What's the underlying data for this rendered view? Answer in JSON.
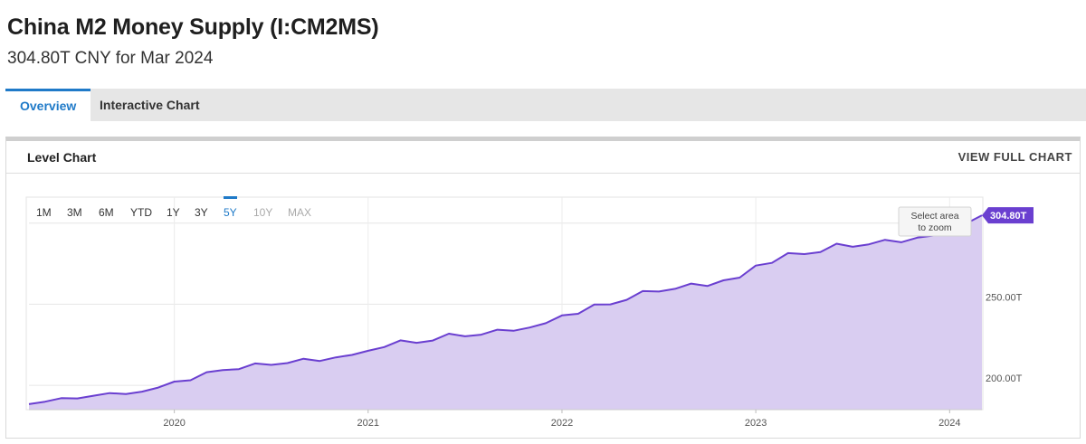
{
  "header": {
    "title": "China M2 Money Supply (I:CM2MS)",
    "subtitle": "304.80T CNY for Mar 2024"
  },
  "tabs": [
    {
      "label": "Overview",
      "active": true
    },
    {
      "label": "Interactive Chart",
      "active": false
    }
  ],
  "card": {
    "title": "Level Chart",
    "view_full_label": "VIEW FULL CHART"
  },
  "range_buttons": [
    {
      "label": "1M",
      "state": "normal"
    },
    {
      "label": "3M",
      "state": "normal"
    },
    {
      "label": "6M",
      "state": "normal"
    },
    {
      "label": "YTD",
      "state": "normal"
    },
    {
      "label": "1Y",
      "state": "normal"
    },
    {
      "label": "3Y",
      "state": "normal"
    },
    {
      "label": "5Y",
      "state": "active"
    },
    {
      "label": "10Y",
      "state": "disabled"
    },
    {
      "label": "MAX",
      "state": "disabled"
    }
  ],
  "zoom_hint": [
    "Select area",
    "to zoom"
  ],
  "colors": {
    "accent": "#1f7ac8",
    "series_line": "#6a3fd0",
    "series_fill": "#d9cdf1",
    "last_value_badge": "#6a3fd0"
  },
  "chart_data": {
    "type": "area",
    "title": "",
    "xlabel": "",
    "ylabel": "",
    "x_ticks": [
      "2020",
      "2021",
      "2022",
      "2023",
      "2024"
    ],
    "y_ticks": [
      "200.00T",
      "250.00T"
    ],
    "y_tick_values": [
      200,
      250
    ],
    "ylim": [
      185,
      316
    ],
    "xlim": [
      "2019-04",
      "2024-03"
    ],
    "last_value_label": "304.80T",
    "grid": true,
    "series": [
      {
        "x": [
          "2019-04",
          "2019-05",
          "2019-06",
          "2019-07",
          "2019-08",
          "2019-09",
          "2019-10",
          "2019-11",
          "2019-12",
          "2020-01",
          "2020-02",
          "2020-03",
          "2020-04",
          "2020-05",
          "2020-06",
          "2020-07",
          "2020-08",
          "2020-09",
          "2020-10",
          "2020-11",
          "2020-12",
          "2021-01",
          "2021-02",
          "2021-03",
          "2021-04",
          "2021-05",
          "2021-06",
          "2021-07",
          "2021-08",
          "2021-09",
          "2021-10",
          "2021-11",
          "2021-12",
          "2022-01",
          "2022-02",
          "2022-03",
          "2022-04",
          "2022-05",
          "2022-06",
          "2022-07",
          "2022-08",
          "2022-09",
          "2022-10",
          "2022-11",
          "2022-12",
          "2023-01",
          "2023-02",
          "2023-03",
          "2023-04",
          "2023-05",
          "2023-06",
          "2023-07",
          "2023-08",
          "2023-09",
          "2023-10",
          "2023-11",
          "2023-12",
          "2024-01",
          "2024-02",
          "2024-03"
        ],
        "values": [
          188.4,
          189.9,
          192.1,
          191.9,
          193.6,
          195.2,
          194.6,
          196.1,
          198.6,
          202.3,
          203.1,
          208.1,
          209.4,
          210.0,
          213.5,
          212.6,
          213.7,
          216.4,
          215.0,
          217.2,
          218.7,
          221.3,
          223.6,
          227.7,
          226.2,
          227.6,
          231.8,
          230.2,
          231.2,
          234.3,
          233.6,
          235.6,
          238.3,
          243.1,
          244.1,
          249.8,
          249.9,
          252.7,
          258.1,
          257.8,
          259.5,
          262.7,
          261.2,
          264.7,
          266.4,
          273.8,
          275.5,
          281.5,
          280.9,
          282.1,
          287.3,
          285.4,
          286.9,
          289.7,
          288.2,
          291.0,
          292.3,
          297.6,
          299.6,
          304.8
        ]
      }
    ]
  }
}
